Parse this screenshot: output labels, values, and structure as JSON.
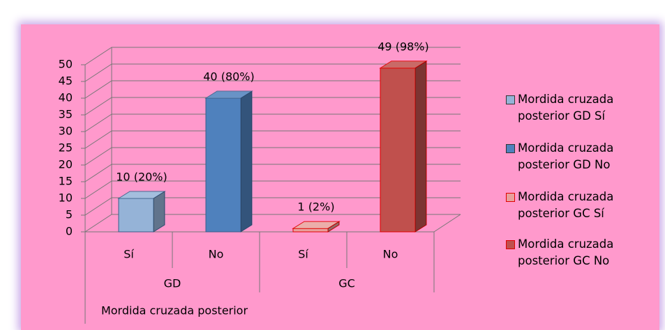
{
  "chart_data": {
    "type": "bar3d",
    "categories": [
      "Sí",
      "No",
      "Sí",
      "No"
    ],
    "groups": [
      "GD",
      "GC"
    ],
    "xlabel": "Mordida cruzada posterior",
    "ylim": [
      0,
      50
    ],
    "yticks": [
      0,
      5,
      10,
      15,
      20,
      25,
      30,
      35,
      40,
      45,
      50
    ],
    "grid": true,
    "legend": "right",
    "series": [
      {
        "name": "Mordida cruzada posterior GD Sí",
        "color": "#95b3d7",
        "values": [
          10,
          null,
          null,
          null
        ],
        "value_labels": [
          "10 (20%)",
          null,
          null,
          null
        ]
      },
      {
        "name": "Mordida cruzada posterior GD No",
        "color": "#4f81bd",
        "values": [
          null,
          40,
          null,
          null
        ],
        "value_labels": [
          null,
          "40 (80%)",
          null,
          null
        ]
      },
      {
        "name": "Mordida cruzada posterior GC Sí",
        "color": "#e8a09c",
        "values": [
          null,
          null,
          1,
          null
        ],
        "value_labels": [
          null,
          null,
          "1 (2%)",
          null
        ]
      },
      {
        "name": "Mordida cruzada posterior GC No",
        "color": "#c0504d",
        "values": [
          null,
          null,
          null,
          49
        ],
        "value_labels": [
          null,
          null,
          null,
          "49 (98%)"
        ]
      }
    ]
  }
}
